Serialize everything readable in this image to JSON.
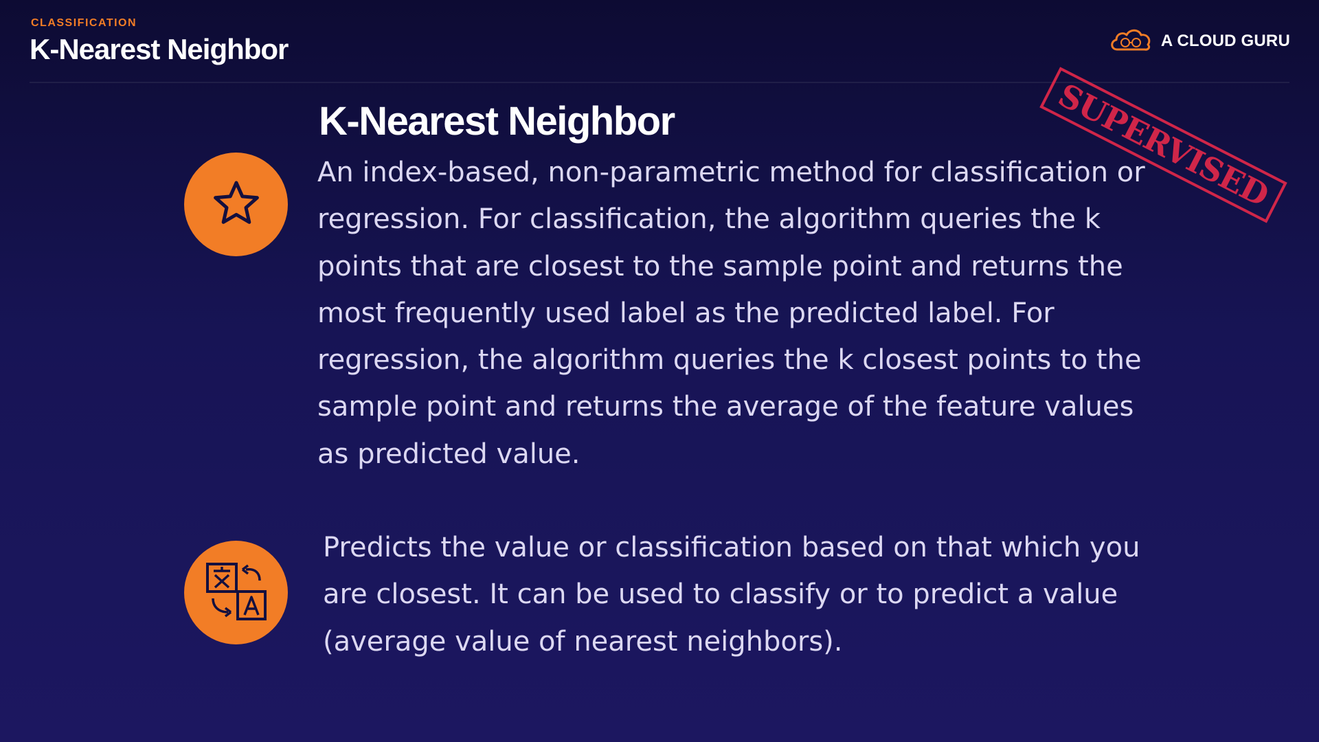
{
  "header": {
    "eyebrow": "CLASSIFICATION",
    "title": "K-Nearest Neighbor"
  },
  "brand": {
    "name": "A CLOUD GURU",
    "icon": "cloud-logo-icon"
  },
  "stamp": {
    "text": "SUPERVISED",
    "color": "#e1284a"
  },
  "content": {
    "title": "K-Nearest Neighbor",
    "description": "An index-based, non-parametric method for classification or regression.  For classification, the algorithm queries the k points that are closest to the sample point and returns the most frequently used label as the predicted label.  For regression, the algorithm queries the k closest points to the sample point and returns the average of the feature values as predicted value.",
    "summary": "Predicts the value or classification based on that which you are closest.  It can be used to classify or to predict a value (average value of nearest neighbors).",
    "icons": [
      "star-icon",
      "translate-icon"
    ]
  },
  "colors": {
    "accent": "#f27d26",
    "background_top": "#0d0b33",
    "background_bottom": "#1c1760"
  }
}
